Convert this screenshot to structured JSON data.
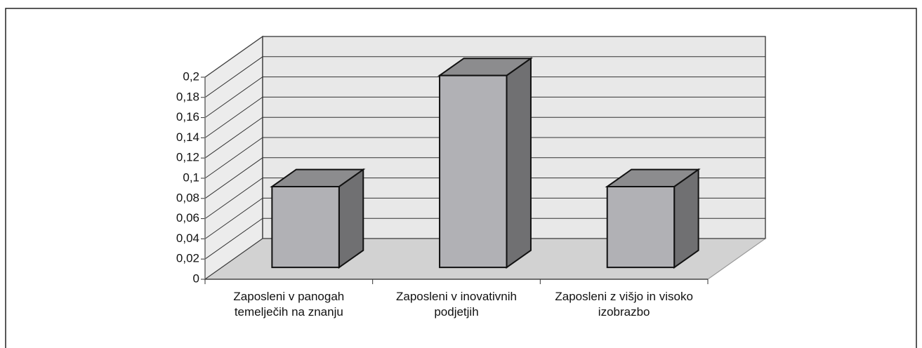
{
  "chart_data": {
    "type": "bar3d",
    "categories": [
      "Zaposleni v panogah temelječih na znanju",
      "Zaposleni v inovativnih podjetjih",
      "Zaposleni z višjo in visoko izobrazbo"
    ],
    "values": [
      0.08,
      0.19,
      0.08
    ],
    "color": "#b1b1b5",
    "ylim": [
      0,
      0.2
    ],
    "yticks": [
      0,
      {
        "value": 0.02,
        "label": "0,02"
      },
      {
        "value": 0.04,
        "label": "0,04"
      },
      {
        "value": 0.06,
        "label": "0,06"
      },
      {
        "value": 0.08,
        "label": "0,08"
      },
      {
        "value": 0.1,
        "label": "0,1"
      },
      {
        "value": 0.12,
        "label": "0,12"
      },
      {
        "value": 0.14,
        "label": "0,14"
      },
      {
        "value": 0.16,
        "label": "0,16"
      },
      {
        "value": 0.18,
        "label": "0,18"
      },
      {
        "value": 0.2,
        "label": "0,2"
      }
    ],
    "grid": true
  }
}
